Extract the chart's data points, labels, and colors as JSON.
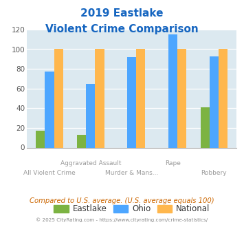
{
  "title_line1": "2019 Eastlake",
  "title_line2": "Violent Crime Comparison",
  "categories": [
    "All Violent Crime",
    "Aggravated Assault",
    "Murder & Mans...",
    "Rape",
    "Robbery"
  ],
  "tick_labels_row1": [
    "",
    "Aggravated Assault",
    "",
    "Rape",
    ""
  ],
  "tick_labels_row2": [
    "All Violent Crime",
    "",
    "Murder & Mans...",
    "",
    "Robbery"
  ],
  "eastlake": [
    17,
    13,
    0,
    0,
    41
  ],
  "ohio": [
    77,
    65,
    92,
    115,
    93
  ],
  "national": [
    100,
    100,
    100,
    100,
    100
  ],
  "bar_color_eastlake": "#7cb342",
  "bar_color_ohio": "#4da6ff",
  "bar_color_national": "#ffb74d",
  "ylim": [
    0,
    120
  ],
  "yticks": [
    0,
    20,
    40,
    60,
    80,
    100,
    120
  ],
  "title_color": "#1565c0",
  "background_color": "#dce9f0",
  "note_text": "Compared to U.S. average. (U.S. average equals 100)",
  "note_color": "#cc6600",
  "copyright_text": "© 2025 CityRating.com - https://www.cityrating.com/crime-statistics/",
  "copyright_color": "#888888",
  "legend_labels": [
    "Eastlake",
    "Ohio",
    "National"
  ],
  "bar_width": 0.22
}
